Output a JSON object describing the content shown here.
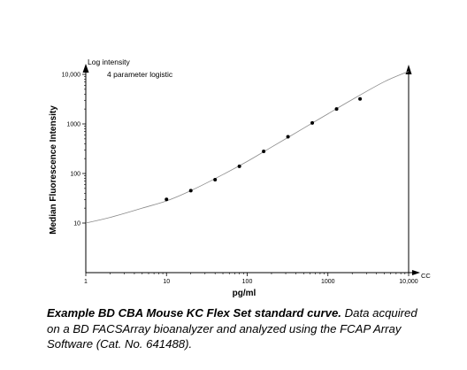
{
  "chart_data": {
    "type": "scatter",
    "x_scale": "log",
    "y_scale": "log",
    "xlim": [
      1,
      10000
    ],
    "ylim": [
      1,
      10000
    ],
    "x_ticks": [
      1,
      10,
      100,
      1000,
      10000
    ],
    "x_tick_labels": [
      "1",
      "10",
      "100",
      "1000",
      "10,000"
    ],
    "y_ticks": [
      10,
      100,
      1000,
      10000
    ],
    "y_tick_labels": [
      "10",
      "100",
      "1000",
      "10,000"
    ],
    "xlabel": "pg/ml",
    "ylabel": "Median Fluorescence Intensity",
    "x_axis_end_label": "CC",
    "y_axis_top_label": "Log intensity",
    "legend_text": "4 parameter logistic",
    "grid": false,
    "points": {
      "x": [
        10,
        20,
        40,
        80,
        160,
        320,
        640,
        1280,
        2500
      ],
      "y": [
        30,
        45,
        75,
        140,
        280,
        550,
        1050,
        2000,
        3200
      ]
    },
    "fit": {
      "model": "4 parameter logistic",
      "curve_x": [
        1,
        2,
        5,
        10,
        20,
        50,
        100,
        200,
        500,
        1000,
        2000,
        5000,
        10000
      ],
      "curve_y": [
        10,
        13,
        20,
        28,
        45,
        95,
        175,
        340,
        820,
        1600,
        3100,
        7100,
        11500
      ]
    },
    "colors": {
      "axis": "#000000",
      "points": "#000000",
      "fit_line": "#8a8a8a"
    }
  },
  "caption": {
    "bold": "Example BD CBA Mouse KC Flex Set standard curve.",
    "rest": " Data acquired on a BD FACSArray bioanalyzer and analyzed using the FCAP Array Software (Cat. No. 641488)."
  }
}
